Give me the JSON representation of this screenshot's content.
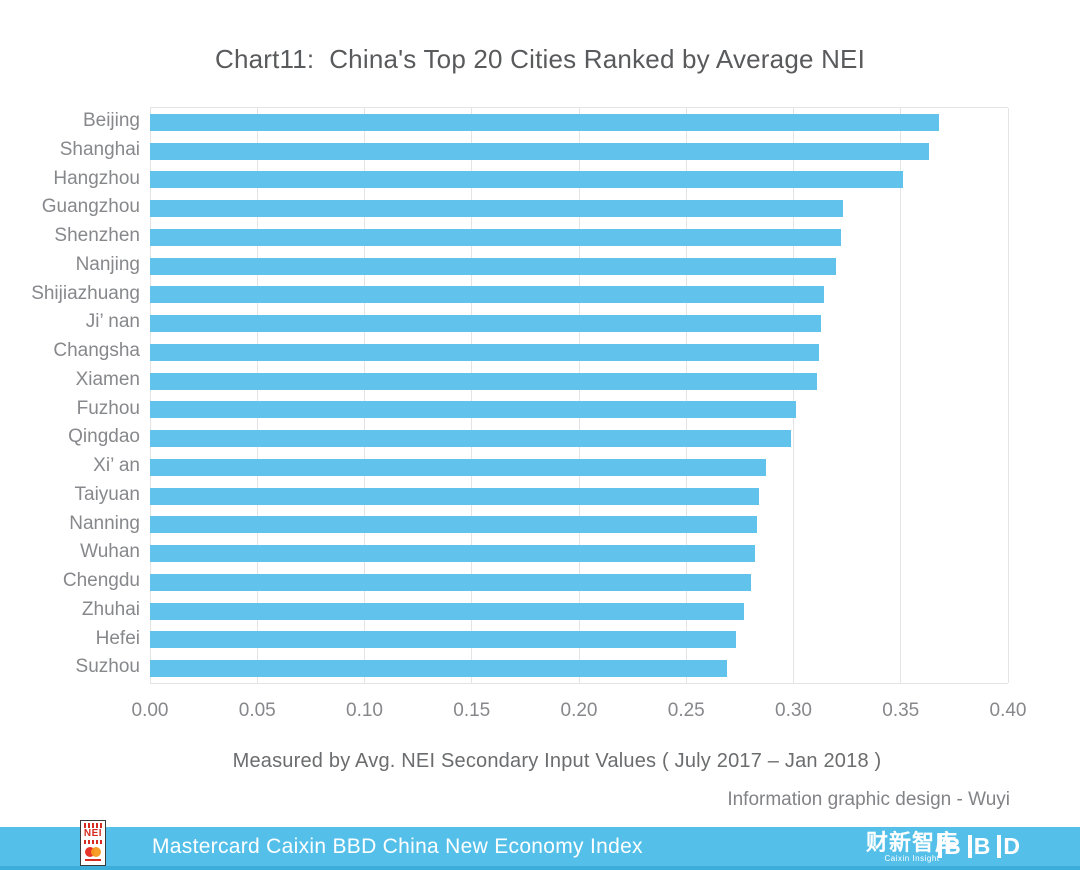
{
  "title": "Chart11:  China's Top 20 Cities Ranked by Average NEI",
  "subtitle": "Measured by Avg. NEI Secondary Input Values ( July 2017 – Jan 2018 )",
  "credit": "Information graphic design - Wuyi",
  "chart_data": {
    "type": "bar",
    "orientation": "horizontal",
    "title": "Chart11:  China's Top 20 Cities Ranked by Average NEI",
    "xlabel": "Measured by Avg. NEI Secondary Input Values ( July 2017 – Jan 2018 )",
    "ylabel": "",
    "categories": [
      "Beijing",
      "Shanghai",
      "Hangzhou",
      "Guangzhou",
      "Shenzhen",
      "Nanjing",
      "Shijiazhuang",
      "Ji’ nan",
      "Changsha",
      "Xiamen",
      "Fuzhou",
      "Qingdao",
      "Xi’ an",
      "Taiyuan",
      "Nanning",
      "Wuhan",
      "Chengdu",
      "Zhuhai",
      "Hefei",
      "Suzhou"
    ],
    "values": [
      0.368,
      0.363,
      0.351,
      0.323,
      0.322,
      0.32,
      0.314,
      0.313,
      0.312,
      0.311,
      0.301,
      0.299,
      0.287,
      0.284,
      0.283,
      0.282,
      0.28,
      0.277,
      0.273,
      0.269
    ],
    "xlim": [
      0,
      0.4
    ],
    "xticks": [
      "0.00",
      "0.05",
      "0.10",
      "0.15",
      "0.20",
      "0.25",
      "0.30",
      "0.35",
      "0.40"
    ],
    "grid": true,
    "legend": "none",
    "bar_color": "#61c3ec"
  },
  "footer": {
    "bar_text": "Mastercard Caixin BBD China New Economy Index",
    "nei_logo_text": "NEI",
    "caixin_logo_text": "财新智库",
    "caixin_logo_subtext": "Caixin Insight",
    "bbd_logo_text": "BBD",
    "bg_color": "#54c0ea",
    "strip_color": "#3dadd9"
  },
  "colors": {
    "bar": "#61c3ec",
    "title_text": "#595a5c",
    "axis_text": "#87888b",
    "gridline": "#e4e4e4"
  }
}
